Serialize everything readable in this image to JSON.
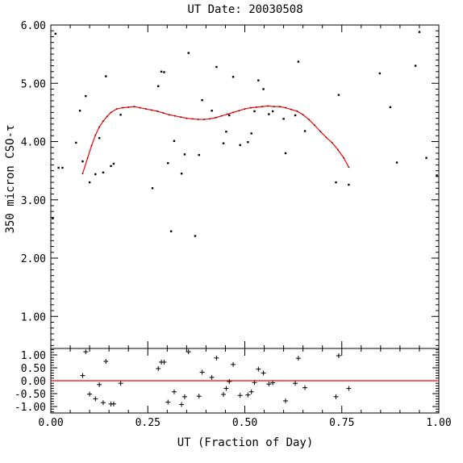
{
  "chart_data": [
    {
      "type": "scatter",
      "title": "UT Date: 20030508",
      "xlabel": "",
      "ylabel": "350 micron CSO-τ",
      "xlim": [
        0.0,
        1.0
      ],
      "ylim": [
        0.45,
        6.0
      ],
      "yticks": [
        1.0,
        2.0,
        3.0,
        4.0,
        5.0,
        6.0
      ],
      "ytick_labels": [
        "1.00",
        "2.00",
        "3.00",
        "4.00",
        "5.00",
        "6.00"
      ],
      "grid": false,
      "series": [
        {
          "kind": "points",
          "color": "#000000",
          "points": [
            [
              0.005,
              2.68
            ],
            [
              0.012,
              5.85
            ],
            [
              0.02,
              3.55
            ],
            [
              0.03,
              3.55
            ],
            [
              0.065,
              3.98
            ],
            [
              0.075,
              4.53
            ],
            [
              0.082,
              3.66
            ],
            [
              0.09,
              4.78
            ],
            [
              0.1,
              3.3
            ],
            [
              0.115,
              3.44
            ],
            [
              0.125,
              4.06
            ],
            [
              0.135,
              3.47
            ],
            [
              0.142,
              5.12
            ],
            [
              0.155,
              3.58
            ],
            [
              0.162,
              3.62
            ],
            [
              0.18,
              4.46
            ],
            [
              0.262,
              3.2
            ],
            [
              0.277,
              4.95
            ],
            [
              0.285,
              5.2
            ],
            [
              0.292,
              5.19
            ],
            [
              0.302,
              3.63
            ],
            [
              0.31,
              2.46
            ],
            [
              0.318,
              4.01
            ],
            [
              0.337,
              3.45
            ],
            [
              0.345,
              3.78
            ],
            [
              0.355,
              5.52
            ],
            [
              0.372,
              2.38
            ],
            [
              0.382,
              3.77
            ],
            [
              0.39,
              4.71
            ],
            [
              0.415,
              4.53
            ],
            [
              0.427,
              5.28
            ],
            [
              0.445,
              3.97
            ],
            [
              0.452,
              4.17
            ],
            [
              0.46,
              4.45
            ],
            [
              0.47,
              5.11
            ],
            [
              0.488,
              3.94
            ],
            [
              0.508,
              3.99
            ],
            [
              0.517,
              4.14
            ],
            [
              0.525,
              4.52
            ],
            [
              0.535,
              5.05
            ],
            [
              0.548,
              4.9
            ],
            [
              0.562,
              4.47
            ],
            [
              0.572,
              4.52
            ],
            [
              0.6,
              4.39
            ],
            [
              0.605,
              3.8
            ],
            [
              0.63,
              4.45
            ],
            [
              0.638,
              5.37
            ],
            [
              0.655,
              4.18
            ],
            [
              0.735,
              3.3
            ],
            [
              0.742,
              4.8
            ],
            [
              0.768,
              3.26
            ],
            [
              0.848,
              5.17
            ],
            [
              0.875,
              4.59
            ],
            [
              0.892,
              3.64
            ],
            [
              0.94,
              5.3
            ],
            [
              0.95,
              5.88
            ],
            [
              0.968,
              3.72
            ],
            [
              0.995,
              3.42
            ]
          ]
        },
        {
          "kind": "fit",
          "color": "#ff0000",
          "points": [
            [
              0.082,
              3.45
            ],
            [
              0.095,
              3.72
            ],
            [
              0.105,
              3.93
            ],
            [
              0.115,
              4.11
            ],
            [
              0.125,
              4.25
            ],
            [
              0.135,
              4.35
            ],
            [
              0.145,
              4.43
            ],
            [
              0.155,
              4.5
            ],
            [
              0.17,
              4.56
            ],
            [
              0.185,
              4.58
            ],
            [
              0.2,
              4.59
            ],
            [
              0.215,
              4.6
            ],
            [
              0.23,
              4.58
            ],
            [
              0.245,
              4.56
            ],
            [
              0.26,
              4.54
            ],
            [
              0.275,
              4.52
            ],
            [
              0.29,
              4.49
            ],
            [
              0.305,
              4.46
            ],
            [
              0.32,
              4.44
            ],
            [
              0.335,
              4.42
            ],
            [
              0.35,
              4.4
            ],
            [
              0.365,
              4.39
            ],
            [
              0.38,
              4.38
            ],
            [
              0.395,
              4.38
            ],
            [
              0.41,
              4.39
            ],
            [
              0.425,
              4.41
            ],
            [
              0.44,
              4.44
            ],
            [
              0.455,
              4.47
            ],
            [
              0.47,
              4.5
            ],
            [
              0.485,
              4.53
            ],
            [
              0.5,
              4.56
            ],
            [
              0.515,
              4.58
            ],
            [
              0.53,
              4.59
            ],
            [
              0.545,
              4.6
            ],
            [
              0.56,
              4.61
            ],
            [
              0.575,
              4.6
            ],
            [
              0.59,
              4.6
            ],
            [
              0.605,
              4.58
            ],
            [
              0.62,
              4.55
            ],
            [
              0.635,
              4.52
            ],
            [
              0.65,
              4.46
            ],
            [
              0.665,
              4.38
            ],
            [
              0.68,
              4.28
            ],
            [
              0.695,
              4.17
            ],
            [
              0.71,
              4.07
            ],
            [
              0.725,
              3.98
            ],
            [
              0.74,
              3.86
            ],
            [
              0.755,
              3.72
            ],
            [
              0.768,
              3.56
            ]
          ]
        }
      ]
    },
    {
      "type": "scatter",
      "title": "",
      "xlabel": "UT (Fraction of Day)",
      "ylabel": "",
      "xlim": [
        0.0,
        1.0
      ],
      "ylim": [
        -1.25,
        1.25
      ],
      "xticks": [
        0.0,
        0.25,
        0.5,
        0.75,
        1.0
      ],
      "xtick_labels": [
        "0.00",
        "0.25",
        "0.50",
        "0.75",
        "1.00"
      ],
      "yticks": [
        1.0,
        0.5,
        0.0,
        -0.5,
        -1.0
      ],
      "ytick_labels": [
        "1.00",
        "0.50",
        "0.00",
        "-0.50",
        "-1.00"
      ],
      "grid": false,
      "zero_line_color": "#ff0000",
      "series": [
        {
          "kind": "residuals",
          "marker": "+",
          "color": "#000000",
          "points": [
            [
              0.082,
              0.2
            ],
            [
              0.09,
              1.12
            ],
            [
              0.1,
              -0.52
            ],
            [
              0.115,
              -0.7
            ],
            [
              0.125,
              -0.15
            ],
            [
              0.135,
              -0.85
            ],
            [
              0.142,
              0.75
            ],
            [
              0.155,
              -0.9
            ],
            [
              0.162,
              -0.9
            ],
            [
              0.18,
              -0.1
            ],
            [
              0.277,
              0.47
            ],
            [
              0.285,
              0.72
            ],
            [
              0.292,
              0.72
            ],
            [
              0.302,
              -0.83
            ],
            [
              0.318,
              -0.43
            ],
            [
              0.337,
              -0.92
            ],
            [
              0.345,
              -0.62
            ],
            [
              0.355,
              1.12
            ],
            [
              0.382,
              -0.6
            ],
            [
              0.39,
              0.33
            ],
            [
              0.415,
              0.13
            ],
            [
              0.427,
              0.88
            ],
            [
              0.445,
              -0.53
            ],
            [
              0.452,
              -0.3
            ],
            [
              0.46,
              -0.03
            ],
            [
              0.47,
              0.63
            ],
            [
              0.488,
              -0.57
            ],
            [
              0.508,
              -0.55
            ],
            [
              0.517,
              -0.43
            ],
            [
              0.525,
              -0.07
            ],
            [
              0.535,
              0.45
            ],
            [
              0.548,
              0.3
            ],
            [
              0.562,
              -0.13
            ],
            [
              0.572,
              -0.08
            ],
            [
              0.605,
              -0.78
            ],
            [
              0.63,
              -0.1
            ],
            [
              0.638,
              0.87
            ],
            [
              0.655,
              -0.27
            ],
            [
              0.735,
              -0.62
            ],
            [
              0.742,
              0.97
            ],
            [
              0.768,
              -0.3
            ]
          ]
        }
      ]
    }
  ]
}
